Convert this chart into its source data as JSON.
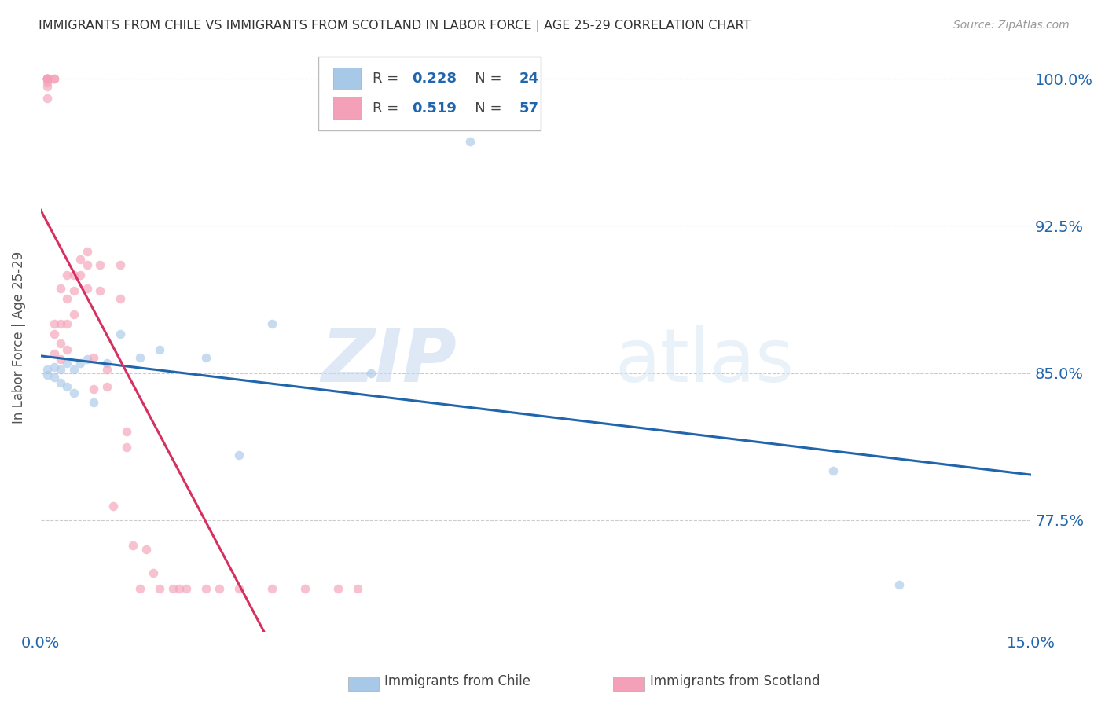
{
  "title": "IMMIGRANTS FROM CHILE VS IMMIGRANTS FROM SCOTLAND IN LABOR FORCE | AGE 25-29 CORRELATION CHART",
  "source": "Source: ZipAtlas.com",
  "ylabel": "In Labor Force | Age 25-29",
  "xlim": [
    0.0,
    0.15
  ],
  "ylim": [
    0.718,
    1.018
  ],
  "xticks": [
    0.0,
    0.05,
    0.1,
    0.15
  ],
  "xtick_labels": [
    "0.0%",
    "",
    "",
    "15.0%"
  ],
  "yticks": [
    0.775,
    0.85,
    0.925,
    1.0
  ],
  "ytick_labels": [
    "77.5%",
    "85.0%",
    "92.5%",
    "100.0%"
  ],
  "chile_color": "#a8c8e8",
  "scotland_color": "#f4a0b8",
  "chile_line_color": "#2166ac",
  "scotland_line_color": "#d63060",
  "R_chile": 0.228,
  "N_chile": 24,
  "R_scotland": 0.519,
  "N_scotland": 57,
  "chile_x": [
    0.001,
    0.001,
    0.002,
    0.002,
    0.003,
    0.003,
    0.004,
    0.004,
    0.005,
    0.005,
    0.006,
    0.007,
    0.008,
    0.01,
    0.012,
    0.015,
    0.018,
    0.025,
    0.03,
    0.035,
    0.05,
    0.065,
    0.13,
    0.12
  ],
  "chile_y": [
    0.852,
    0.849,
    0.853,
    0.848,
    0.852,
    0.845,
    0.855,
    0.843,
    0.852,
    0.84,
    0.855,
    0.857,
    0.835,
    0.855,
    0.87,
    0.858,
    0.862,
    0.858,
    0.808,
    0.875,
    0.85,
    0.968,
    0.742,
    0.8
  ],
  "scotland_x": [
    0.001,
    0.001,
    0.001,
    0.001,
    0.001,
    0.001,
    0.001,
    0.001,
    0.001,
    0.001,
    0.002,
    0.002,
    0.002,
    0.002,
    0.002,
    0.003,
    0.003,
    0.003,
    0.003,
    0.004,
    0.004,
    0.004,
    0.004,
    0.005,
    0.005,
    0.005,
    0.006,
    0.006,
    0.007,
    0.007,
    0.007,
    0.008,
    0.008,
    0.009,
    0.009,
    0.01,
    0.01,
    0.011,
    0.012,
    0.012,
    0.013,
    0.013,
    0.014,
    0.015,
    0.016,
    0.017,
    0.018,
    0.02,
    0.021,
    0.022,
    0.025,
    0.027,
    0.03,
    0.035,
    0.04,
    0.045,
    0.048
  ],
  "scotland_y": [
    1.0,
    1.0,
    1.0,
    1.0,
    1.0,
    1.0,
    1.0,
    0.99,
    0.998,
    0.996,
    1.0,
    1.0,
    0.87,
    0.875,
    0.86,
    0.893,
    0.875,
    0.865,
    0.857,
    0.9,
    0.888,
    0.875,
    0.862,
    0.9,
    0.892,
    0.88,
    0.908,
    0.9,
    0.912,
    0.905,
    0.893,
    0.858,
    0.842,
    0.905,
    0.892,
    0.852,
    0.843,
    0.782,
    0.905,
    0.888,
    0.82,
    0.812,
    0.762,
    0.74,
    0.76,
    0.748,
    0.74,
    0.74,
    0.74,
    0.74,
    0.74,
    0.74,
    0.74,
    0.74,
    0.74,
    0.74,
    0.74
  ],
  "watermark_zip": "ZIP",
  "watermark_atlas": "atlas",
  "marker_size": 70,
  "line_width": 2.2
}
